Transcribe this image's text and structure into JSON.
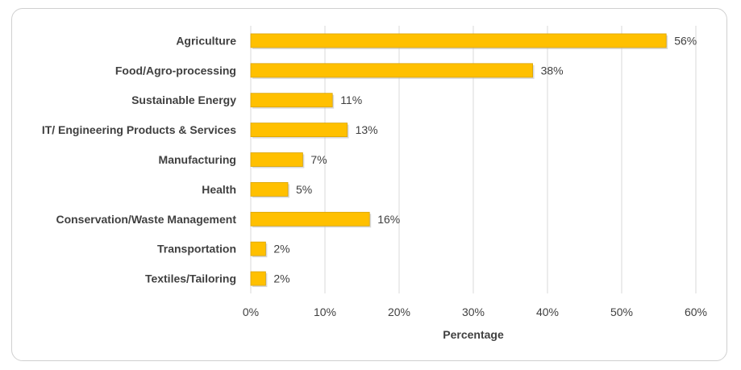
{
  "chart_data": {
    "type": "bar",
    "orientation": "horizontal",
    "categories": [
      "Agriculture",
      "Food/Agro-processing",
      "Sustainable Energy",
      "IT/ Engineering Products & Services",
      "Manufacturing",
      "Health",
      "Conservation/Waste Management",
      "Transportation",
      "Textiles/Tailoring"
    ],
    "values": [
      56,
      38,
      11,
      13,
      7,
      5,
      16,
      2,
      2
    ],
    "value_labels": [
      "56%",
      "38%",
      "11%",
      "13%",
      "7%",
      "5%",
      "16%",
      "2%",
      "2%"
    ],
    "xlabel": "Percentage",
    "xlim": [
      0,
      60
    ],
    "xticks": [
      0,
      10,
      20,
      30,
      40,
      50,
      60
    ],
    "xtick_labels": [
      "0%",
      "10%",
      "20%",
      "30%",
      "40%",
      "50%",
      "60%"
    ],
    "grid": "vertical",
    "legend": "none",
    "bar_color": "#FFC000",
    "bar_shadow_color": "#D9A300"
  }
}
